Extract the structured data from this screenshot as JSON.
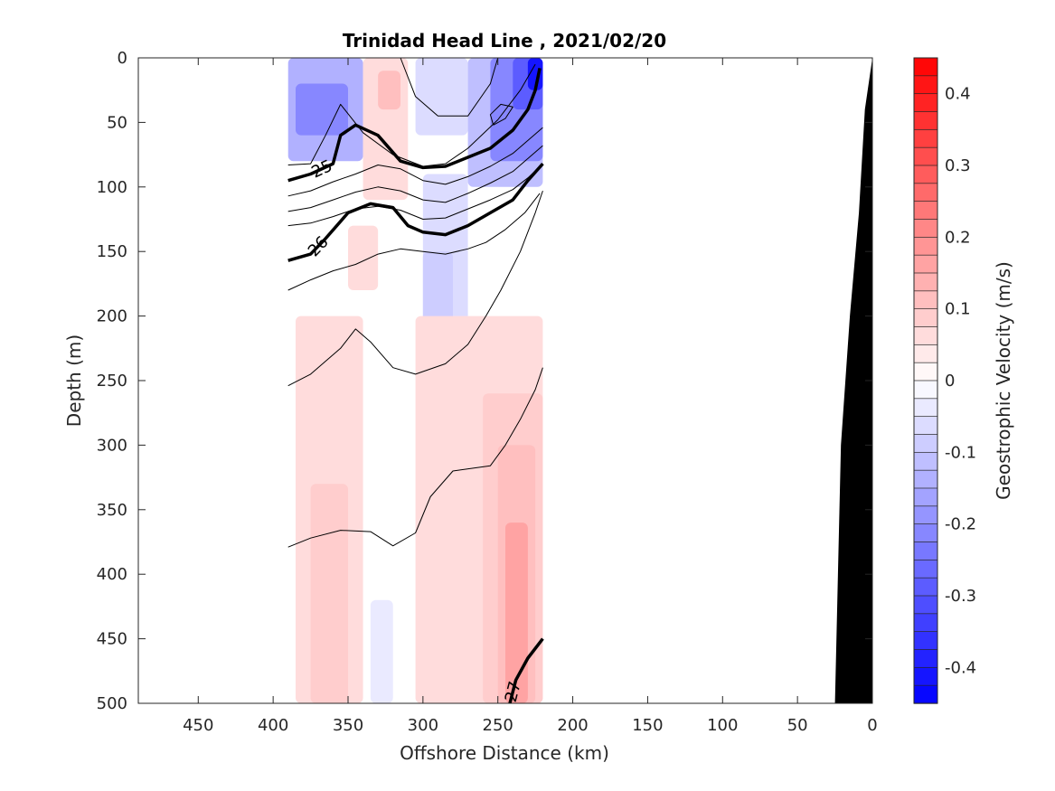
{
  "chart_data": {
    "type": "heatmap",
    "title": "Trinidad Head Line , 2021/02/20",
    "xlabel": "Offshore Distance (km)",
    "ylabel": "Depth (m)",
    "xlim": [
      490,
      0
    ],
    "ylim": [
      0,
      500
    ],
    "x_reversed": true,
    "y_reversed": true,
    "x_ticks": [
      450,
      400,
      350,
      300,
      250,
      200,
      150,
      100,
      50,
      0
    ],
    "y_ticks": [
      0,
      50,
      100,
      150,
      200,
      250,
      300,
      350,
      400,
      450,
      500
    ],
    "grid": false,
    "colorbar": {
      "label": "Geostrophic Velocity (m/s)",
      "range": [
        -0.45,
        0.45
      ],
      "step": 0.025,
      "ticks": [
        0.4,
        0.3,
        0.2,
        0.1,
        0,
        -0.1,
        -0.2,
        -0.3,
        -0.4
      ],
      "tick_labels": [
        "0.4",
        "0.3",
        "0.2",
        "0.1",
        "0",
        "-0.1",
        "-0.2",
        "-0.3",
        "-0.4"
      ],
      "colormap": "blue-white-red",
      "positive_color": "#ff0000",
      "negative_color": "#0000ff"
    },
    "velocity_field": {
      "units": "m/s",
      "data_extent_x": [
        390,
        220
      ],
      "cells": [
        {
          "x": [
            390,
            340
          ],
          "depth": [
            0,
            80
          ],
          "v": -0.15
        },
        {
          "x": [
            385,
            350
          ],
          "depth": [
            20,
            60
          ],
          "v": -0.22
        },
        {
          "x": [
            340,
            310
          ],
          "depth": [
            0,
            110
          ],
          "v": 0.07
        },
        {
          "x": [
            330,
            315
          ],
          "depth": [
            10,
            40
          ],
          "v": 0.12
        },
        {
          "x": [
            305,
            270
          ],
          "depth": [
            0,
            60
          ],
          "v": -0.06
        },
        {
          "x": [
            270,
            220
          ],
          "depth": [
            0,
            100
          ],
          "v": -0.12
        },
        {
          "x": [
            255,
            220
          ],
          "depth": [
            0,
            80
          ],
          "v": -0.2
        },
        {
          "x": [
            240,
            220
          ],
          "depth": [
            0,
            40
          ],
          "v": -0.3
        },
        {
          "x": [
            230,
            220
          ],
          "depth": [
            0,
            25
          ],
          "v": -0.42
        },
        {
          "x": [
            350,
            330
          ],
          "depth": [
            130,
            180
          ],
          "v": 0.06
        },
        {
          "x": [
            300,
            270
          ],
          "depth": [
            90,
            240
          ],
          "v": -0.05
        },
        {
          "x": [
            300,
            280
          ],
          "depth": [
            150,
            210
          ],
          "v": -0.09
        },
        {
          "x": [
            385,
            340
          ],
          "depth": [
            200,
            500
          ],
          "v": 0.05
        },
        {
          "x": [
            375,
            350
          ],
          "depth": [
            330,
            500
          ],
          "v": 0.08
        },
        {
          "x": [
            335,
            320
          ],
          "depth": [
            420,
            500
          ],
          "v": -0.04
        },
        {
          "x": [
            305,
            220
          ],
          "depth": [
            200,
            500
          ],
          "v": 0.05
        },
        {
          "x": [
            260,
            220
          ],
          "depth": [
            260,
            500
          ],
          "v": 0.08
        },
        {
          "x": [
            250,
            225
          ],
          "depth": [
            300,
            500
          ],
          "v": 0.12
        },
        {
          "x": [
            245,
            230
          ],
          "depth": [
            360,
            500
          ],
          "v": 0.16
        }
      ]
    },
    "density_contours": [
      {
        "level": 24.75,
        "style": "thin",
        "label": "",
        "points": [
          [
            390,
            83
          ],
          [
            375,
            82
          ],
          [
            365,
            60
          ],
          [
            355,
            36
          ],
          [
            340,
            58
          ],
          [
            320,
            75
          ],
          [
            300,
            84
          ],
          [
            285,
            82
          ],
          [
            270,
            70
          ],
          [
            250,
            48
          ],
          [
            235,
            25
          ],
          [
            225,
            5
          ]
        ]
      },
      {
        "level": 24.5,
        "style": "thin",
        "label": "",
        "points": [
          [
            315,
            0
          ],
          [
            305,
            30
          ],
          [
            290,
            45
          ],
          [
            270,
            45
          ],
          [
            255,
            20
          ],
          [
            250,
            0
          ]
        ]
      },
      {
        "level": 24.5,
        "style": "thin",
        "label": "",
        "points": [
          [
            253,
            52
          ],
          [
            245,
            47
          ],
          [
            240,
            38
          ],
          [
            248,
            36
          ],
          [
            255,
            44
          ],
          [
            253,
            52
          ]
        ]
      },
      {
        "level": 25,
        "style": "bold",
        "label": "25",
        "points": [
          [
            390,
            95
          ],
          [
            375,
            90
          ],
          [
            360,
            82
          ],
          [
            355,
            60
          ],
          [
            345,
            52
          ],
          [
            330,
            60
          ],
          [
            315,
            80
          ],
          [
            300,
            85
          ],
          [
            285,
            84
          ],
          [
            270,
            77
          ],
          [
            255,
            70
          ],
          [
            240,
            56
          ],
          [
            230,
            40
          ],
          [
            225,
            25
          ],
          [
            222,
            8
          ]
        ]
      },
      {
        "level": 25.25,
        "style": "thin",
        "label": "",
        "points": [
          [
            390,
            107
          ],
          [
            375,
            103
          ],
          [
            360,
            96
          ],
          [
            345,
            90
          ],
          [
            330,
            83
          ],
          [
            315,
            86
          ],
          [
            300,
            95
          ],
          [
            285,
            98
          ],
          [
            270,
            92
          ],
          [
            255,
            84
          ],
          [
            240,
            74
          ],
          [
            230,
            64
          ],
          [
            220,
            54
          ]
        ]
      },
      {
        "level": 25.5,
        "style": "thin",
        "label": "",
        "points": [
          [
            390,
            119
          ],
          [
            375,
            116
          ],
          [
            360,
            110
          ],
          [
            345,
            104
          ],
          [
            330,
            100
          ],
          [
            315,
            103
          ],
          [
            300,
            110
          ],
          [
            285,
            112
          ],
          [
            270,
            105
          ],
          [
            255,
            97
          ],
          [
            240,
            88
          ],
          [
            230,
            78
          ],
          [
            220,
            68
          ]
        ]
      },
      {
        "level": 25.75,
        "style": "thin",
        "label": "",
        "points": [
          [
            390,
            130
          ],
          [
            375,
            128
          ],
          [
            360,
            123
          ],
          [
            345,
            117
          ],
          [
            330,
            115
          ],
          [
            315,
            118
          ],
          [
            300,
            125
          ],
          [
            285,
            124
          ],
          [
            270,
            117
          ],
          [
            255,
            110
          ],
          [
            240,
            102
          ],
          [
            230,
            93
          ],
          [
            220,
            82
          ]
        ]
      },
      {
        "level": 26,
        "style": "bold",
        "label": "26",
        "points": [
          [
            390,
            157
          ],
          [
            375,
            152
          ],
          [
            365,
            140
          ],
          [
            350,
            120
          ],
          [
            335,
            113
          ],
          [
            320,
            116
          ],
          [
            310,
            130
          ],
          [
            300,
            135
          ],
          [
            285,
            137
          ],
          [
            270,
            130
          ],
          [
            255,
            120
          ],
          [
            240,
            110
          ],
          [
            230,
            95
          ],
          [
            220,
            82
          ]
        ]
      },
      {
        "level": 26.25,
        "style": "thin",
        "label": "",
        "points": [
          [
            390,
            180
          ],
          [
            375,
            172
          ],
          [
            360,
            165
          ],
          [
            345,
            160
          ],
          [
            330,
            152
          ],
          [
            315,
            148
          ],
          [
            300,
            150
          ],
          [
            285,
            152
          ],
          [
            270,
            148
          ],
          [
            258,
            143
          ],
          [
            245,
            133
          ],
          [
            232,
            120
          ],
          [
            222,
            105
          ]
        ]
      },
      {
        "level": 26.5,
        "style": "thin",
        "label": "",
        "points": [
          [
            390,
            254
          ],
          [
            375,
            245
          ],
          [
            355,
            225
          ],
          [
            345,
            210
          ],
          [
            335,
            220
          ],
          [
            320,
            240
          ],
          [
            305,
            245
          ],
          [
            285,
            237
          ],
          [
            270,
            222
          ],
          [
            258,
            200
          ],
          [
            248,
            180
          ],
          [
            235,
            150
          ],
          [
            225,
            120
          ],
          [
            220,
            103
          ]
        ]
      },
      {
        "level": 26.75,
        "style": "thin",
        "label": "",
        "points": [
          [
            390,
            379
          ],
          [
            375,
            372
          ],
          [
            355,
            366
          ],
          [
            335,
            367
          ],
          [
            320,
            378
          ],
          [
            305,
            368
          ],
          [
            295,
            340
          ],
          [
            280,
            320
          ],
          [
            255,
            316
          ],
          [
            245,
            300
          ],
          [
            235,
            280
          ],
          [
            225,
            257
          ],
          [
            220,
            240
          ]
        ]
      },
      {
        "level": 27,
        "style": "bold",
        "label": "27",
        "points": [
          [
            242,
            500
          ],
          [
            238,
            482
          ],
          [
            230,
            465
          ],
          [
            220,
            450
          ]
        ]
      }
    ],
    "bathymetry": {
      "fill": "#000000",
      "points": [
        [
          25,
          500
        ],
        [
          21,
          300
        ],
        [
          15,
          200
        ],
        [
          9,
          120
        ],
        [
          5,
          40
        ],
        [
          0,
          0
        ],
        [
          0,
          500
        ]
      ]
    }
  }
}
